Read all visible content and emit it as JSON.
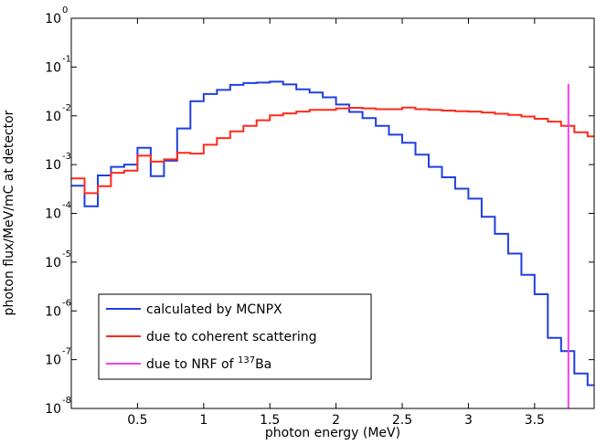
{
  "chart_data": {
    "type": "line",
    "step": true,
    "xlabel": "photon energy (MeV)",
    "ylabel": "photon flux/MeV/mC at detector",
    "xlim": [
      0,
      3.95
    ],
    "ylim": [
      1e-08,
      1
    ],
    "yscale": "log",
    "x_ticks": [
      "0.5",
      "1",
      "1.5",
      "2",
      "2.5",
      "3",
      "3.5"
    ],
    "y_tick_base": "10",
    "y_ticks": [
      "0",
      "-1",
      "-2",
      "-3",
      "-4",
      "-5",
      "-6",
      "-7",
      "-8"
    ],
    "legend_placement": "bottom-left",
    "series": [
      {
        "name": "calculated by MCNPX",
        "color": "#1f3fe0",
        "x": [
          0,
          0.1,
          0.2,
          0.3,
          0.4,
          0.5,
          0.6,
          0.7,
          0.8,
          0.9,
          1.0,
          1.1,
          1.2,
          1.3,
          1.4,
          1.5,
          1.6,
          1.7,
          1.8,
          1.9,
          2.0,
          2.1,
          2.2,
          2.3,
          2.4,
          2.5,
          2.6,
          2.7,
          2.8,
          2.9,
          3.0,
          3.1,
          3.2,
          3.3,
          3.4,
          3.5,
          3.6,
          3.7,
          3.8,
          3.9
        ],
        "y": [
          0.00037,
          0.00014,
          0.0006,
          0.0009,
          0.001,
          0.0022,
          0.00058,
          0.0012,
          0.0055,
          0.02,
          0.028,
          0.034,
          0.043,
          0.047,
          0.048,
          0.05,
          0.044,
          0.035,
          0.03,
          0.024,
          0.017,
          0.012,
          0.009,
          0.0062,
          0.0041,
          0.0028,
          0.0016,
          0.0009,
          0.00055,
          0.00032,
          0.0002,
          8.5e-05,
          3.8e-05,
          1.5e-05,
          5.5e-06,
          2.2e-06,
          2.8e-07,
          1.5e-07,
          5.2e-08,
          3e-08
        ]
      },
      {
        "name": "due to coherent scattering",
        "color": "#ff2a1a",
        "x": [
          0,
          0.1,
          0.2,
          0.3,
          0.4,
          0.5,
          0.6,
          0.7,
          0.8,
          0.9,
          1.0,
          1.1,
          1.2,
          1.3,
          1.4,
          1.5,
          1.6,
          1.7,
          1.8,
          1.9,
          2.0,
          2.1,
          2.2,
          2.3,
          2.4,
          2.5,
          2.6,
          2.7,
          2.8,
          2.9,
          3.0,
          3.1,
          3.2,
          3.3,
          3.4,
          3.5,
          3.6,
          3.7,
          3.8,
          3.9
        ],
        "y": [
          0.00052,
          0.00026,
          0.00036,
          0.00068,
          0.00075,
          0.00152,
          0.00115,
          0.00128,
          0.00175,
          0.00168,
          0.00255,
          0.0035,
          0.0048,
          0.0062,
          0.0081,
          0.0102,
          0.0112,
          0.0122,
          0.0132,
          0.0132,
          0.0142,
          0.0146,
          0.0142,
          0.0137,
          0.0137,
          0.0147,
          0.0137,
          0.0132,
          0.0128,
          0.0124,
          0.0122,
          0.0117,
          0.011,
          0.0104,
          0.0097,
          0.0087,
          0.0076,
          0.0062,
          0.0046,
          0.0038
        ]
      },
      {
        "name": "due to NRF of 137Ba",
        "legend_prefix": "due to NRF of ",
        "legend_sup": "137",
        "legend_suffix": "Ba",
        "color": "#f040e8",
        "x": [
          3.755,
          3.755
        ],
        "y": [
          1e-08,
          0.045
        ]
      }
    ]
  }
}
